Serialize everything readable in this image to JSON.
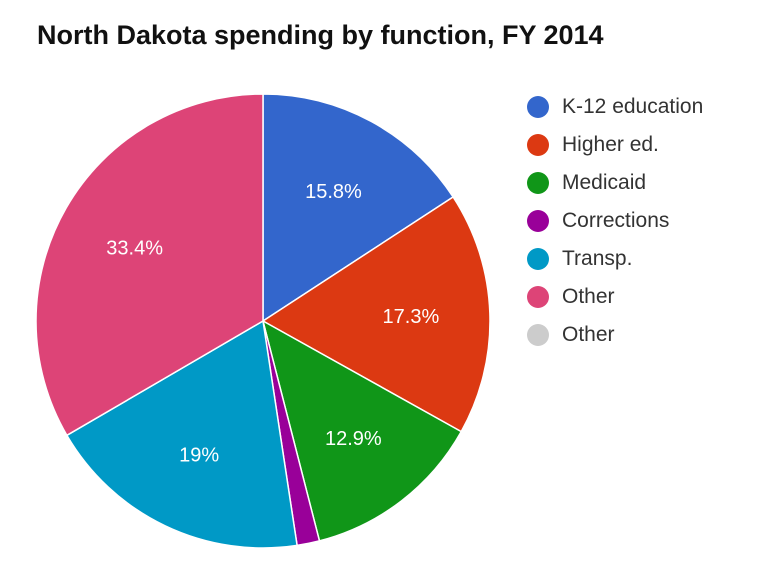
{
  "chart_data": {
    "type": "pie",
    "title": "North Dakota spending by function, FY 2014",
    "legend_position": "right",
    "slices": [
      {
        "label": "K-12 education",
        "value": 15.8,
        "display": "15.8%",
        "color": "#3366cc"
      },
      {
        "label": "Higher ed.",
        "value": 17.3,
        "display": "17.3%",
        "color": "#dc3912"
      },
      {
        "label": "Medicaid",
        "value": 12.9,
        "display": "12.9%",
        "color": "#109618"
      },
      {
        "label": "Corrections",
        "value": 1.6,
        "display": "",
        "color": "#990099"
      },
      {
        "label": "Transp.",
        "value": 19.0,
        "display": "19%",
        "color": "#0099c6"
      },
      {
        "label": "Other",
        "value": 33.4,
        "display": "33.4%",
        "color": "#dd4477"
      },
      {
        "label": "Other",
        "value": 0,
        "display": "",
        "color": "#cccccc"
      }
    ]
  }
}
